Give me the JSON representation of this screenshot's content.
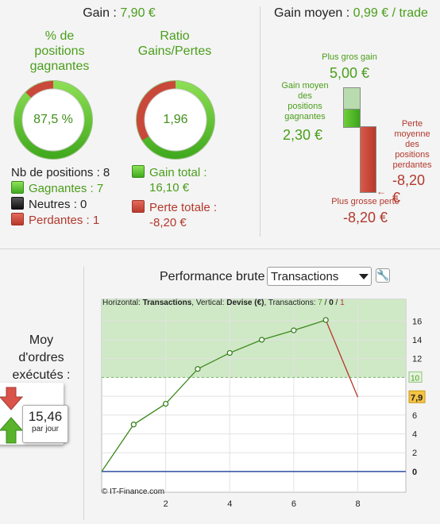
{
  "top_left": {
    "gain_label": "Gain :",
    "gain_value": "7,90 €",
    "pct_title_line1": "% de",
    "pct_title_line2": "positions",
    "pct_title_line3": "gagnantes",
    "pct_value": "87,5 %",
    "pct_fraction": 0.875,
    "ratio_title_line1": "Ratio",
    "ratio_title_line2": "Gains/Pertes",
    "ratio_value": "1,96",
    "ratio_fraction": 0.662,
    "nb_positions": "Nb de positions : 8",
    "gagnantes": "Gagnantes : 7",
    "neutres": "Neutres : 0",
    "perdantes": "Perdantes : 1",
    "gain_total_label": "Gain total :",
    "gain_total_value": "16,10 €",
    "perte_totale_label": "Perte totale :",
    "perte_totale_value": "-8,20 €"
  },
  "top_right": {
    "gain_moyen_label": "Gain moyen :",
    "gain_moyen_value": "0,99 € / trade",
    "plus_gros_gain_label": "Plus gros gain",
    "plus_gros_gain_value": "5,00 €",
    "gain_moyen_pos_line1": "Gain moyen",
    "gain_moyen_pos_line2": "des",
    "gain_moyen_pos_line3": "positions",
    "gain_moyen_pos_line4": "gagnantes",
    "gain_moyen_pos_value": "2,30 €",
    "perte_moy_line1": "Perte",
    "perte_moy_line2": "moyenne",
    "perte_moy_line3": "des",
    "perte_moy_line4": "positions",
    "perte_moy_line5": "perdantes",
    "perte_moy_value": "-8,20 €",
    "plus_grosse_perte_label": "Plus grosse perte",
    "plus_grosse_perte_value": "-8,20 €"
  },
  "bottom_left": {
    "moy_line1": "Moy",
    "moy_line2": "d'ordres",
    "moy_line3": "exécutés :",
    "value": "15,46",
    "unit": "par jour"
  },
  "perf": {
    "title": "Performance brute",
    "select_value": "Transactions",
    "info_h_label": "Horizontal:",
    "info_h_value": "Transactions",
    "info_v_label": "Vertical:",
    "info_v_value": "Devise (€)",
    "info_t_label": "Transactions:",
    "info_t_green": "7",
    "info_t_sep1": "/",
    "info_t_black": "0",
    "info_t_sep2": "/",
    "info_t_red": "1",
    "copyright": "© IT-Finance.com",
    "colors": {
      "green_line": "#3c8a1c",
      "red_line": "#b3382c",
      "zero_line": "#2e4fa0",
      "band": "#cfe8c6"
    }
  },
  "chart_data": {
    "type": "line",
    "x": [
      0,
      1,
      2,
      3,
      4,
      5,
      6,
      7,
      8
    ],
    "y": [
      0,
      5,
      7.2,
      10.9,
      12.6,
      14,
      15,
      16.1,
      7.9
    ],
    "x_ticks": [
      "2",
      "4",
      "6",
      "8"
    ],
    "y_ticks": [
      "0",
      "2",
      "4",
      "6",
      "8",
      "10",
      "12",
      "14",
      "16"
    ],
    "xlim": [
      0,
      9.5
    ],
    "ylim": [
      -2.2,
      18.3
    ],
    "band_from": 10,
    "highlight_y_labels": [
      "10",
      "7,9"
    ],
    "last_value_label": "7,9",
    "winning_points": 7,
    "losing_points": 1,
    "grid": true
  }
}
